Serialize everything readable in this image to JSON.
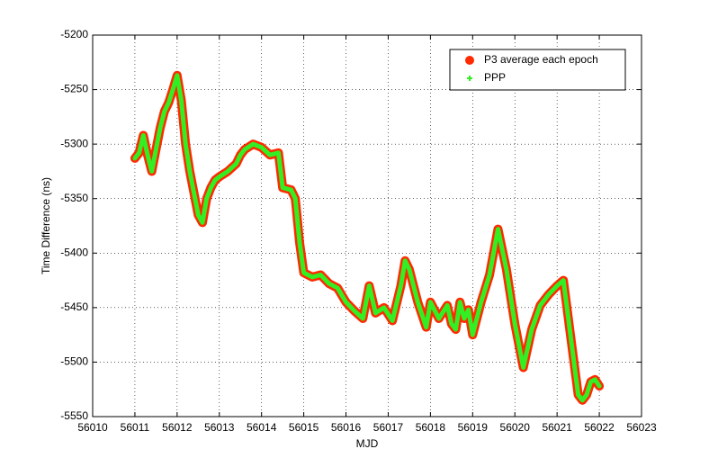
{
  "chart_data": {
    "type": "line",
    "xlabel": "MJD",
    "ylabel": "Time Difference (ns)",
    "xlim": [
      56010,
      56023
    ],
    "xticks": [
      56010,
      56011,
      56012,
      56013,
      56014,
      56015,
      56016,
      56017,
      56018,
      56019,
      56020,
      56021,
      56022,
      56023
    ],
    "ylim": [
      -5550,
      -5200
    ],
    "yticks": [
      -5550,
      -5500,
      -5450,
      -5400,
      -5350,
      -5300,
      -5250,
      -5200
    ],
    "grid": true,
    "legend": "upper right",
    "x": [
      56011.0,
      56011.1,
      56011.2,
      56011.3,
      56011.4,
      56011.5,
      56011.6,
      56011.7,
      56011.8,
      56011.9,
      56012.0,
      56012.1,
      56012.2,
      56012.3,
      56012.4,
      56012.5,
      56012.6,
      56012.7,
      56012.8,
      56012.9,
      56013.0,
      56013.2,
      56013.4,
      56013.5,
      56013.6,
      56013.8,
      56014.0,
      56014.2,
      56014.4,
      56014.5,
      56014.7,
      56014.8,
      56014.9,
      56015.0,
      56015.2,
      56015.4,
      56015.6,
      56015.8,
      56016.0,
      56016.2,
      56016.4,
      56016.55,
      56016.7,
      56016.9,
      56017.1,
      56017.3,
      56017.4,
      56017.5,
      56017.7,
      56017.9,
      56018.0,
      56018.2,
      56018.4,
      56018.5,
      56018.6,
      56018.7,
      56018.8,
      56018.9,
      56019.0,
      56019.2,
      56019.4,
      56019.6,
      56019.8,
      56020.0,
      56020.2,
      56020.4,
      56020.6,
      56020.8,
      56021.0,
      56021.15,
      56021.3,
      56021.5,
      56021.6,
      56021.7,
      56021.8,
      56021.9,
      56022.0
    ],
    "series": [
      {
        "name": "P3 average each epoch",
        "color": "#ff2a00",
        "values": [
          -5313,
          -5308,
          -5292,
          -5310,
          -5325,
          -5305,
          -5285,
          -5270,
          -5262,
          -5250,
          -5237,
          -5260,
          -5300,
          -5325,
          -5345,
          -5365,
          -5372,
          -5350,
          -5340,
          -5333,
          -5330,
          -5325,
          -5318,
          -5310,
          -5305,
          -5300,
          -5303,
          -5310,
          -5308,
          -5340,
          -5342,
          -5350,
          -5390,
          -5418,
          -5422,
          -5420,
          -5428,
          -5432,
          -5445,
          -5453,
          -5460,
          -5430,
          -5455,
          -5450,
          -5462,
          -5430,
          -5407,
          -5415,
          -5445,
          -5468,
          -5445,
          -5460,
          -5448,
          -5465,
          -5470,
          -5445,
          -5460,
          -5452,
          -5475,
          -5445,
          -5420,
          -5378,
          -5415,
          -5465,
          -5505,
          -5470,
          -5448,
          -5438,
          -5430,
          -5425,
          -5470,
          -5530,
          -5535,
          -5530,
          -5518,
          -5516,
          -5522
        ]
      },
      {
        "name": "PPP",
        "color": "#33ee22",
        "values": [
          -5313,
          -5308,
          -5292,
          -5310,
          -5325,
          -5305,
          -5285,
          -5270,
          -5262,
          -5250,
          -5237,
          -5260,
          -5300,
          -5325,
          -5345,
          -5365,
          -5372,
          -5350,
          -5340,
          -5333,
          -5330,
          -5325,
          -5318,
          -5310,
          -5305,
          -5300,
          -5303,
          -5310,
          -5308,
          -5340,
          -5342,
          -5350,
          -5390,
          -5418,
          -5422,
          -5420,
          -5428,
          -5432,
          -5445,
          -5453,
          -5460,
          -5430,
          -5455,
          -5450,
          -5462,
          -5430,
          -5407,
          -5415,
          -5445,
          -5468,
          -5445,
          -5460,
          -5448,
          -5465,
          -5470,
          -5445,
          -5460,
          -5452,
          -5475,
          -5445,
          -5420,
          -5378,
          -5415,
          -5465,
          -5505,
          -5470,
          -5448,
          -5438,
          -5430,
          -5425,
          -5470,
          -5530,
          -5535,
          -5530,
          -5518,
          -5516,
          -5522
        ]
      }
    ]
  }
}
